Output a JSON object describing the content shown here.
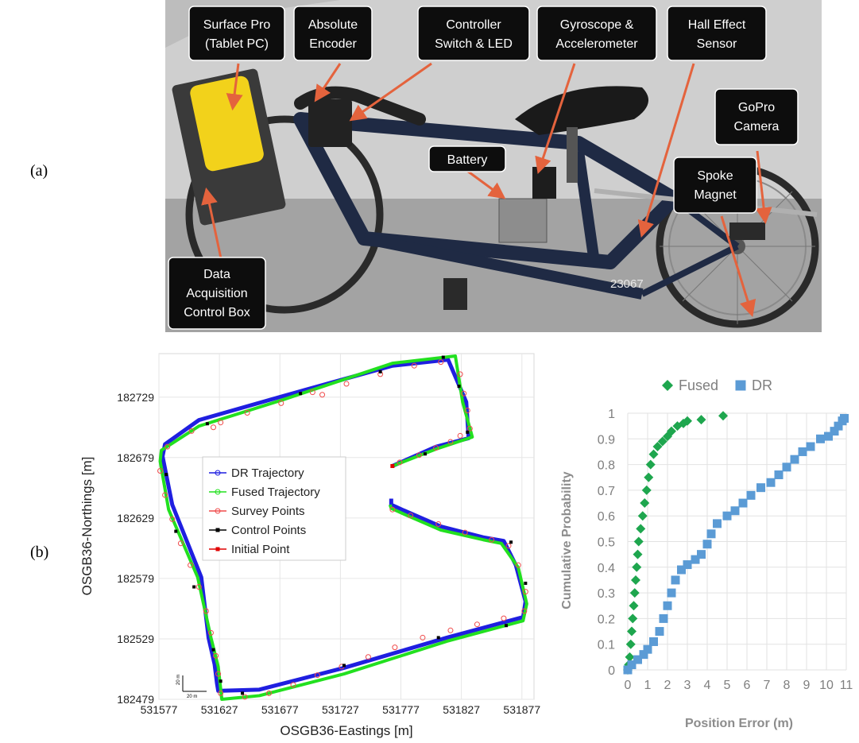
{
  "panel_labels": {
    "a": "(a)",
    "b": "(b)"
  },
  "photo": {
    "labels": {
      "surface_pro_1": "Surface Pro",
      "surface_pro_2": "(Tablet PC)",
      "abs_encoder_1": "Absolute",
      "abs_encoder_2": "Encoder",
      "controller_1": "Controller",
      "controller_2": "Switch & LED",
      "gyro_1": "Gyroscope &",
      "gyro_2": "Accelerometer",
      "hall_1": "Hall Effect",
      "hall_2": "Sensor",
      "gopro_1": "GoPro",
      "gopro_2": "Camera",
      "battery": "Battery",
      "spoke_1": "Spoke",
      "spoke_2": "Magnet",
      "daq_1": "Data",
      "daq_2": "Acquisition",
      "daq_3": "Control Box"
    },
    "bike_text": "23067",
    "colors": {
      "callout_bg": "#0d0d0d",
      "callout_text": "#ffffff",
      "arrow": "#e4633d",
      "wall": "#c9c9c9",
      "floor": "#9c9c9c",
      "frame": "#1f2a44",
      "sponge": "#f2d21b"
    }
  },
  "chart_data": [
    {
      "type": "line",
      "xlabel": "OSGB36-Eastings [m]",
      "ylabel": "OSGB36-Northings [m]",
      "xlim": [
        531577,
        531887
      ],
      "ylim": [
        182479,
        182765
      ],
      "x_ticks": [
        531577,
        531627,
        531677,
        531727,
        531777,
        531827,
        531877
      ],
      "y_ticks": [
        182479,
        182529,
        182579,
        182629,
        182679,
        182729
      ],
      "grid": true,
      "legend_position": "center",
      "scale_bar": {
        "x": "20 m",
        "y": "20 m"
      },
      "series": [
        {
          "name": "DR Trajectory",
          "color": "#1f1fe0",
          "x": [
            531770,
            531806,
            531833,
            531831,
            531816,
            531770,
            531680,
            531610,
            531582,
            531580,
            531588,
            531612,
            531618,
            531623,
            531625,
            531626,
            531660,
            531730,
            531815,
            531878,
            531880,
            531872,
            531862,
            531845,
            531810,
            531780,
            531769,
            531769
          ],
          "y": [
            182672,
            182688,
            182695,
            182725,
            182760,
            182755,
            182730,
            182710,
            182690,
            182680,
            182640,
            182580,
            182530,
            182508,
            182492,
            182486,
            182487,
            182505,
            182530,
            182547,
            182560,
            182590,
            182610,
            182613,
            182622,
            182635,
            182640,
            182645
          ]
        },
        {
          "name": "Fused Trajectory",
          "color": "#22e01f",
          "x": [
            531770,
            531806,
            531836,
            531828,
            531822,
            531770,
            531680,
            531610,
            531579,
            531578,
            531585,
            531609,
            531620,
            531626,
            531628,
            531629,
            531660,
            531730,
            531815,
            531878,
            531881,
            531874,
            531860,
            531845,
            531810,
            531780,
            531769,
            531768
          ],
          "y": [
            182672,
            182686,
            182696,
            182725,
            182763,
            182757,
            182727,
            182705,
            182685,
            182676,
            182636,
            182580,
            182530,
            182506,
            182488,
            182479,
            182482,
            182500,
            182527,
            182544,
            182558,
            182588,
            182608,
            182611,
            182619,
            182632,
            182637,
            182640
          ]
        },
        {
          "name": "Survey Points",
          "color": "#f04b4b",
          "marker": "circle",
          "x": [
            531776,
            531792,
            531806,
            531818,
            531826,
            531834,
            531832,
            531829,
            531826,
            531810,
            531788,
            531760,
            531732,
            531704,
            531678,
            531650,
            531628,
            531604,
            531584,
            531578,
            531582,
            531588,
            531595,
            531603,
            531610,
            531616,
            531620,
            531624,
            531626,
            531628,
            531648,
            531668,
            531688,
            531708,
            531728,
            531750,
            531772,
            531795,
            531818,
            531840,
            531862,
            531879,
            531880,
            531874,
            531866,
            531852,
            531830,
            531808,
            531785,
            531770,
            531712,
            531622
          ],
          "y": [
            182675,
            182681,
            182687,
            182692,
            182697,
            182703,
            182718,
            182732,
            182748,
            182758,
            182755,
            182748,
            182740,
            182733,
            182724,
            182716,
            182708,
            182701,
            182688,
            182668,
            182648,
            182628,
            182608,
            182590,
            182572,
            182552,
            182534,
            182515,
            182500,
            182484,
            182481,
            182484,
            182491,
            182499,
            182506,
            182514,
            182522,
            182530,
            182536,
            182541,
            182546,
            182552,
            182568,
            182590,
            182606,
            182611,
            182617,
            182624,
            182631,
            182636,
            182731,
            182704
          ]
        },
        {
          "name": "Control Points",
          "color": "#000000",
          "marker": "square",
          "x": [
            531797,
            531832,
            531825,
            531812,
            531760,
            531694,
            531617,
            531583,
            531591,
            531606,
            531622,
            531628,
            531646,
            531730,
            531808,
            531864,
            531880,
            531868
          ],
          "y": [
            182682,
            182700,
            182738,
            182762,
            182750,
            182732,
            182707,
            182665,
            182618,
            182572,
            182520,
            182494,
            182484,
            182507,
            182530,
            182540,
            182575,
            182609
          ]
        },
        {
          "name": "Initial Point",
          "color": "#e00000",
          "marker": "square",
          "x": [
            531770
          ],
          "y": [
            182672
          ]
        }
      ]
    },
    {
      "type": "scatter",
      "xlabel": "Position Error (m)",
      "ylabel": "Cumulative Probability",
      "xlim": [
        0,
        11
      ],
      "ylim": [
        0,
        1
      ],
      "x_ticks": [
        0,
        1,
        2,
        3,
        4,
        5,
        6,
        7,
        8,
        9,
        10,
        11
      ],
      "y_ticks": [
        0,
        0.1,
        0.2,
        0.3,
        0.4,
        0.5,
        0.6,
        0.7,
        0.8,
        0.9,
        1
      ],
      "grid": true,
      "legend_position": "top",
      "series": [
        {
          "name": "Fused",
          "color": "#1ea64e",
          "marker": "diamond",
          "points": [
            [
              0.0,
              0.0
            ],
            [
              0.05,
              0.02
            ],
            [
              0.1,
              0.05
            ],
            [
              0.15,
              0.1
            ],
            [
              0.2,
              0.15
            ],
            [
              0.25,
              0.2
            ],
            [
              0.3,
              0.25
            ],
            [
              0.35,
              0.3
            ],
            [
              0.4,
              0.35
            ],
            [
              0.45,
              0.4
            ],
            [
              0.5,
              0.45
            ],
            [
              0.55,
              0.5
            ],
            [
              0.65,
              0.55
            ],
            [
              0.75,
              0.6
            ],
            [
              0.85,
              0.65
            ],
            [
              0.95,
              0.7
            ],
            [
              1.05,
              0.75
            ],
            [
              1.15,
              0.8
            ],
            [
              1.3,
              0.84
            ],
            [
              1.5,
              0.87
            ],
            [
              1.75,
              0.89
            ],
            [
              2.0,
              0.91
            ],
            [
              2.2,
              0.93
            ],
            [
              2.5,
              0.95
            ],
            [
              2.8,
              0.96
            ],
            [
              3.0,
              0.97
            ],
            [
              3.7,
              0.975
            ],
            [
              4.8,
              0.99
            ]
          ]
        },
        {
          "name": "DR",
          "color": "#5b9bd5",
          "marker": "square",
          "points": [
            [
              0.0,
              0.0
            ],
            [
              0.2,
              0.02
            ],
            [
              0.5,
              0.04
            ],
            [
              0.8,
              0.06
            ],
            [
              1.0,
              0.08
            ],
            [
              1.3,
              0.11
            ],
            [
              1.6,
              0.15
            ],
            [
              1.8,
              0.2
            ],
            [
              2.0,
              0.25
            ],
            [
              2.2,
              0.3
            ],
            [
              2.4,
              0.35
            ],
            [
              2.7,
              0.39
            ],
            [
              3.0,
              0.41
            ],
            [
              3.4,
              0.43
            ],
            [
              3.7,
              0.45
            ],
            [
              4.0,
              0.49
            ],
            [
              4.2,
              0.53
            ],
            [
              4.5,
              0.57
            ],
            [
              5.0,
              0.6
            ],
            [
              5.4,
              0.62
            ],
            [
              5.8,
              0.65
            ],
            [
              6.2,
              0.68
            ],
            [
              6.7,
              0.71
            ],
            [
              7.2,
              0.73
            ],
            [
              7.6,
              0.76
            ],
            [
              8.0,
              0.79
            ],
            [
              8.4,
              0.82
            ],
            [
              8.8,
              0.85
            ],
            [
              9.2,
              0.87
            ],
            [
              9.7,
              0.9
            ],
            [
              10.1,
              0.91
            ],
            [
              10.4,
              0.93
            ],
            [
              10.6,
              0.95
            ],
            [
              10.8,
              0.97
            ],
            [
              10.9,
              0.98
            ]
          ]
        }
      ]
    }
  ]
}
